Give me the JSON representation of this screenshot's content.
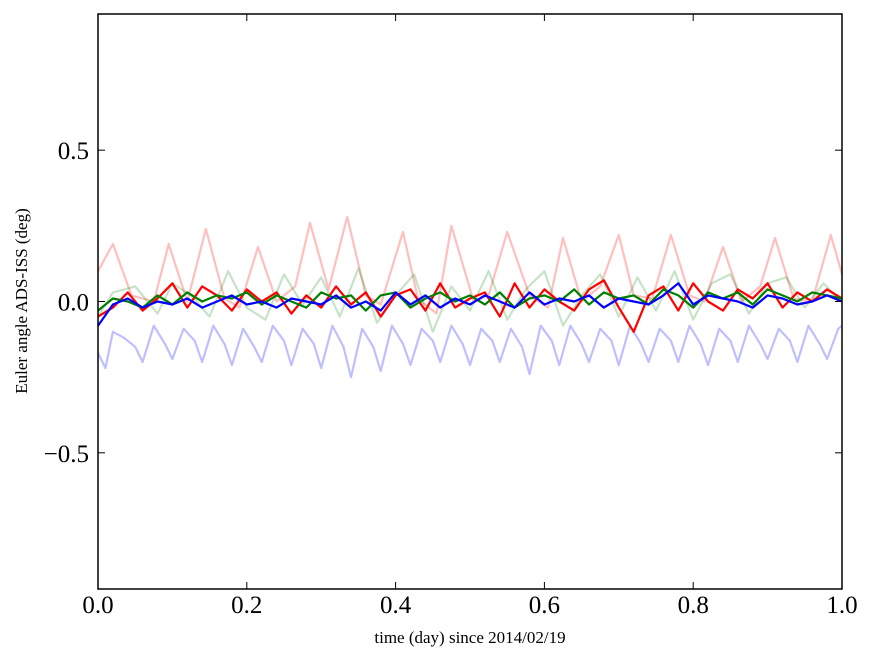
{
  "chart_data": {
    "type": "line",
    "title": "",
    "xlabel": "time (day) since 2014/02/19",
    "ylabel": "Euler angle ADS-ISS (deg)",
    "xlim": [
      0.0,
      1.0
    ],
    "ylim": [
      -0.95,
      0.95
    ],
    "grid": false,
    "legend": "none",
    "x_ticks": [
      0.0,
      0.2,
      0.4,
      0.6,
      0.8,
      1.0
    ],
    "x_tick_labels": [
      "0.0",
      "0.2",
      "0.4",
      "0.6",
      "0.8",
      "1.0"
    ],
    "y_ticks": [
      0.5,
      0.0,
      -0.5
    ],
    "y_tick_labels": [
      "0.5",
      "0.0",
      "−0.5"
    ],
    "series": [
      {
        "color": "#ff0000",
        "opacity": 0.25,
        "x": [
          0.0,
          0.02,
          0.045,
          0.075,
          0.095,
          0.12,
          0.145,
          0.17,
          0.19,
          0.215,
          0.24,
          0.265,
          0.285,
          0.31,
          0.335,
          0.36,
          0.38,
          0.41,
          0.43,
          0.455,
          0.475,
          0.505,
          0.525,
          0.55,
          0.58,
          0.605,
          0.625,
          0.65,
          0.675,
          0.7,
          0.72,
          0.745,
          0.77,
          0.795,
          0.815,
          0.84,
          0.865,
          0.89,
          0.91,
          0.935,
          0.96,
          0.985,
          1.0
        ],
        "y": [
          0.1,
          0.19,
          0.02,
          0.0,
          0.19,
          0.0,
          0.24,
          0.01,
          -0.02,
          0.18,
          0.0,
          0.05,
          0.26,
          0.04,
          0.28,
          0.02,
          -0.01,
          0.23,
          0.01,
          -0.04,
          0.25,
          0.0,
          0.02,
          0.23,
          0.02,
          -0.02,
          0.21,
          0.0,
          0.05,
          0.22,
          0.02,
          0.01,
          0.22,
          0.02,
          0.0,
          0.18,
          0.0,
          0.05,
          0.21,
          0.01,
          0.0,
          0.22,
          0.09
        ]
      },
      {
        "color": "#008000",
        "opacity": 0.22,
        "x": [
          0.0,
          0.02,
          0.05,
          0.08,
          0.1,
          0.125,
          0.15,
          0.175,
          0.2,
          0.225,
          0.25,
          0.275,
          0.3,
          0.325,
          0.35,
          0.375,
          0.4,
          0.425,
          0.45,
          0.475,
          0.5,
          0.525,
          0.55,
          0.575,
          0.6,
          0.625,
          0.65,
          0.675,
          0.7,
          0.725,
          0.75,
          0.775,
          0.8,
          0.825,
          0.85,
          0.875,
          0.9,
          0.925,
          0.95,
          0.975,
          1.0
        ],
        "y": [
          -0.05,
          0.03,
          0.05,
          -0.04,
          0.06,
          0.02,
          -0.05,
          0.1,
          -0.02,
          -0.06,
          0.09,
          -0.01,
          0.08,
          -0.05,
          0.11,
          -0.07,
          0.02,
          0.09,
          -0.1,
          0.05,
          -0.03,
          0.1,
          -0.06,
          0.04,
          0.1,
          -0.08,
          0.02,
          0.09,
          -0.05,
          0.08,
          -0.03,
          0.1,
          -0.06,
          0.06,
          0.09,
          -0.04,
          0.06,
          0.08,
          -0.02,
          0.06,
          0.0
        ]
      },
      {
        "color": "#0000ff",
        "opacity": 0.25,
        "x": [
          0.0,
          0.01,
          0.02,
          0.035,
          0.05,
          0.06,
          0.075,
          0.09,
          0.1,
          0.115,
          0.13,
          0.14,
          0.155,
          0.17,
          0.18,
          0.195,
          0.21,
          0.22,
          0.235,
          0.25,
          0.26,
          0.275,
          0.29,
          0.3,
          0.315,
          0.33,
          0.34,
          0.355,
          0.37,
          0.38,
          0.395,
          0.41,
          0.42,
          0.435,
          0.45,
          0.46,
          0.475,
          0.49,
          0.5,
          0.515,
          0.53,
          0.54,
          0.555,
          0.57,
          0.58,
          0.595,
          0.61,
          0.62,
          0.635,
          0.65,
          0.66,
          0.675,
          0.69,
          0.7,
          0.715,
          0.73,
          0.74,
          0.755,
          0.77,
          0.78,
          0.795,
          0.81,
          0.82,
          0.835,
          0.85,
          0.86,
          0.875,
          0.89,
          0.9,
          0.915,
          0.93,
          0.94,
          0.955,
          0.97,
          0.98,
          0.995,
          1.0
        ],
        "y": [
          -0.17,
          -0.22,
          -0.1,
          -0.12,
          -0.15,
          -0.2,
          -0.08,
          -0.14,
          -0.19,
          -0.09,
          -0.13,
          -0.2,
          -0.08,
          -0.14,
          -0.21,
          -0.09,
          -0.15,
          -0.2,
          -0.08,
          -0.13,
          -0.21,
          -0.09,
          -0.14,
          -0.22,
          -0.08,
          -0.15,
          -0.25,
          -0.09,
          -0.15,
          -0.23,
          -0.08,
          -0.14,
          -0.21,
          -0.09,
          -0.13,
          -0.2,
          -0.08,
          -0.14,
          -0.21,
          -0.09,
          -0.13,
          -0.2,
          -0.09,
          -0.15,
          -0.24,
          -0.08,
          -0.13,
          -0.21,
          -0.08,
          -0.14,
          -0.2,
          -0.09,
          -0.13,
          -0.21,
          -0.08,
          -0.14,
          -0.2,
          -0.09,
          -0.13,
          -0.2,
          -0.08,
          -0.14,
          -0.21,
          -0.09,
          -0.13,
          -0.2,
          -0.08,
          -0.14,
          -0.19,
          -0.09,
          -0.13,
          -0.2,
          -0.08,
          -0.14,
          -0.19,
          -0.09,
          -0.08
        ]
      },
      {
        "color": "#ff0000",
        "opacity": 1.0,
        "x": [
          0.0,
          0.02,
          0.04,
          0.06,
          0.08,
          0.1,
          0.12,
          0.14,
          0.16,
          0.18,
          0.2,
          0.22,
          0.24,
          0.26,
          0.28,
          0.3,
          0.32,
          0.34,
          0.36,
          0.38,
          0.4,
          0.42,
          0.44,
          0.46,
          0.48,
          0.5,
          0.52,
          0.54,
          0.56,
          0.58,
          0.6,
          0.62,
          0.64,
          0.66,
          0.68,
          0.7,
          0.72,
          0.74,
          0.76,
          0.78,
          0.8,
          0.82,
          0.84,
          0.86,
          0.88,
          0.9,
          0.92,
          0.94,
          0.96,
          0.98,
          1.0
        ],
        "y": [
          -0.05,
          -0.02,
          0.03,
          -0.03,
          0.01,
          0.06,
          -0.02,
          0.05,
          0.02,
          -0.03,
          0.04,
          0.0,
          0.03,
          -0.04,
          0.02,
          -0.02,
          0.05,
          -0.01,
          0.03,
          -0.05,
          0.02,
          0.04,
          -0.03,
          0.06,
          -0.02,
          0.01,
          0.03,
          -0.05,
          0.06,
          -0.02,
          0.04,
          0.0,
          -0.03,
          0.04,
          0.07,
          -0.02,
          -0.1,
          0.02,
          0.05,
          -0.03,
          0.06,
          0.0,
          -0.03,
          0.04,
          0.01,
          0.06,
          -0.02,
          0.03,
          0.0,
          0.04,
          0.01
        ]
      },
      {
        "color": "#008000",
        "opacity": 1.0,
        "x": [
          0.0,
          0.02,
          0.04,
          0.06,
          0.08,
          0.1,
          0.12,
          0.14,
          0.16,
          0.18,
          0.2,
          0.22,
          0.24,
          0.26,
          0.28,
          0.3,
          0.32,
          0.34,
          0.36,
          0.38,
          0.4,
          0.42,
          0.44,
          0.46,
          0.48,
          0.5,
          0.52,
          0.54,
          0.56,
          0.58,
          0.6,
          0.62,
          0.64,
          0.66,
          0.68,
          0.7,
          0.72,
          0.74,
          0.76,
          0.78,
          0.8,
          0.82,
          0.84,
          0.86,
          0.88,
          0.9,
          0.92,
          0.94,
          0.96,
          0.98,
          1.0
        ],
        "y": [
          -0.03,
          0.01,
          0.0,
          -0.02,
          0.02,
          -0.01,
          0.03,
          0.0,
          0.02,
          0.01,
          0.03,
          -0.01,
          0.02,
          0.0,
          -0.02,
          0.03,
          0.01,
          0.02,
          -0.03,
          0.02,
          0.03,
          -0.02,
          0.01,
          0.03,
          0.0,
          0.02,
          -0.01,
          0.03,
          -0.02,
          0.01,
          0.02,
          0.0,
          0.04,
          -0.01,
          0.03,
          0.01,
          0.02,
          -0.01,
          0.04,
          0.02,
          -0.02,
          0.03,
          0.01,
          0.03,
          -0.01,
          0.04,
          0.02,
          0.0,
          0.03,
          0.02,
          0.01
        ]
      },
      {
        "color": "#0000ff",
        "opacity": 1.0,
        "x": [
          0.0,
          0.02,
          0.04,
          0.06,
          0.08,
          0.1,
          0.12,
          0.14,
          0.16,
          0.18,
          0.2,
          0.22,
          0.24,
          0.26,
          0.28,
          0.3,
          0.32,
          0.34,
          0.36,
          0.38,
          0.4,
          0.42,
          0.44,
          0.46,
          0.48,
          0.5,
          0.52,
          0.54,
          0.56,
          0.58,
          0.6,
          0.62,
          0.64,
          0.66,
          0.68,
          0.7,
          0.72,
          0.74,
          0.76,
          0.78,
          0.8,
          0.82,
          0.84,
          0.86,
          0.88,
          0.9,
          0.92,
          0.94,
          0.96,
          0.98,
          1.0
        ],
        "y": [
          -0.08,
          -0.01,
          0.01,
          -0.02,
          0.0,
          -0.01,
          0.01,
          -0.02,
          0.0,
          0.02,
          -0.01,
          0.0,
          -0.02,
          0.01,
          0.0,
          -0.01,
          0.02,
          -0.02,
          0.0,
          -0.03,
          0.03,
          -0.01,
          0.02,
          -0.02,
          0.01,
          -0.01,
          0.02,
          0.0,
          -0.02,
          0.03,
          -0.01,
          0.01,
          0.0,
          0.02,
          -0.02,
          0.01,
          0.0,
          -0.01,
          0.02,
          0.06,
          -0.01,
          0.02,
          0.01,
          0.0,
          -0.02,
          0.02,
          0.01,
          -0.01,
          0.0,
          0.02,
          0.0
        ]
      }
    ]
  }
}
